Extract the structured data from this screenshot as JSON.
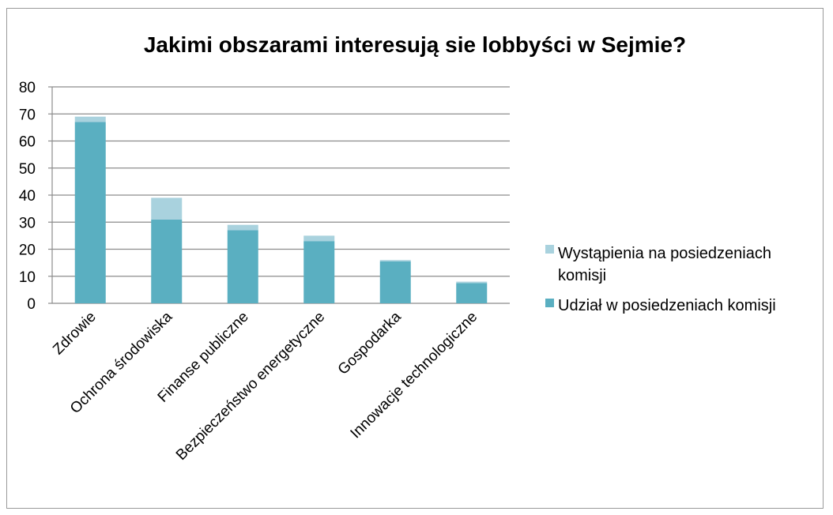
{
  "chart_data": {
    "type": "bar",
    "stacked": true,
    "title": "Jakimi obszarami interesują sie lobbyści w  Sejmie?",
    "categories": [
      "Zdrowie",
      "Ochrona środowiska",
      "Finanse publiczne",
      "Bezpieczeństwo energetyczne",
      "Gospodarka",
      "Innowacje technologiczne"
    ],
    "series": [
      {
        "name": "Udział w posiedzeniach komisji",
        "values": [
          67,
          31,
          27,
          23,
          15.5,
          7.5
        ],
        "color": "#5aafc1"
      },
      {
        "name": "Wystąpienia na posiedzeniach komisji",
        "values": [
          2,
          8,
          2,
          2,
          0.5,
          0.5
        ],
        "color": "#a9d2de"
      }
    ],
    "ylim": [
      0,
      80
    ],
    "yticks": [
      "0",
      "10",
      "20",
      "30",
      "40",
      "50",
      "60",
      "70",
      "80"
    ],
    "grid": true,
    "legend_position": "right",
    "legend": [
      {
        "lines": [
          "Wystąpienia na posiedzeniach",
          "komisji"
        ],
        "color": "#a9d2de"
      },
      {
        "lines": [
          "Udział w posiedzeniach komisji"
        ],
        "color": "#5aafc1"
      }
    ]
  }
}
